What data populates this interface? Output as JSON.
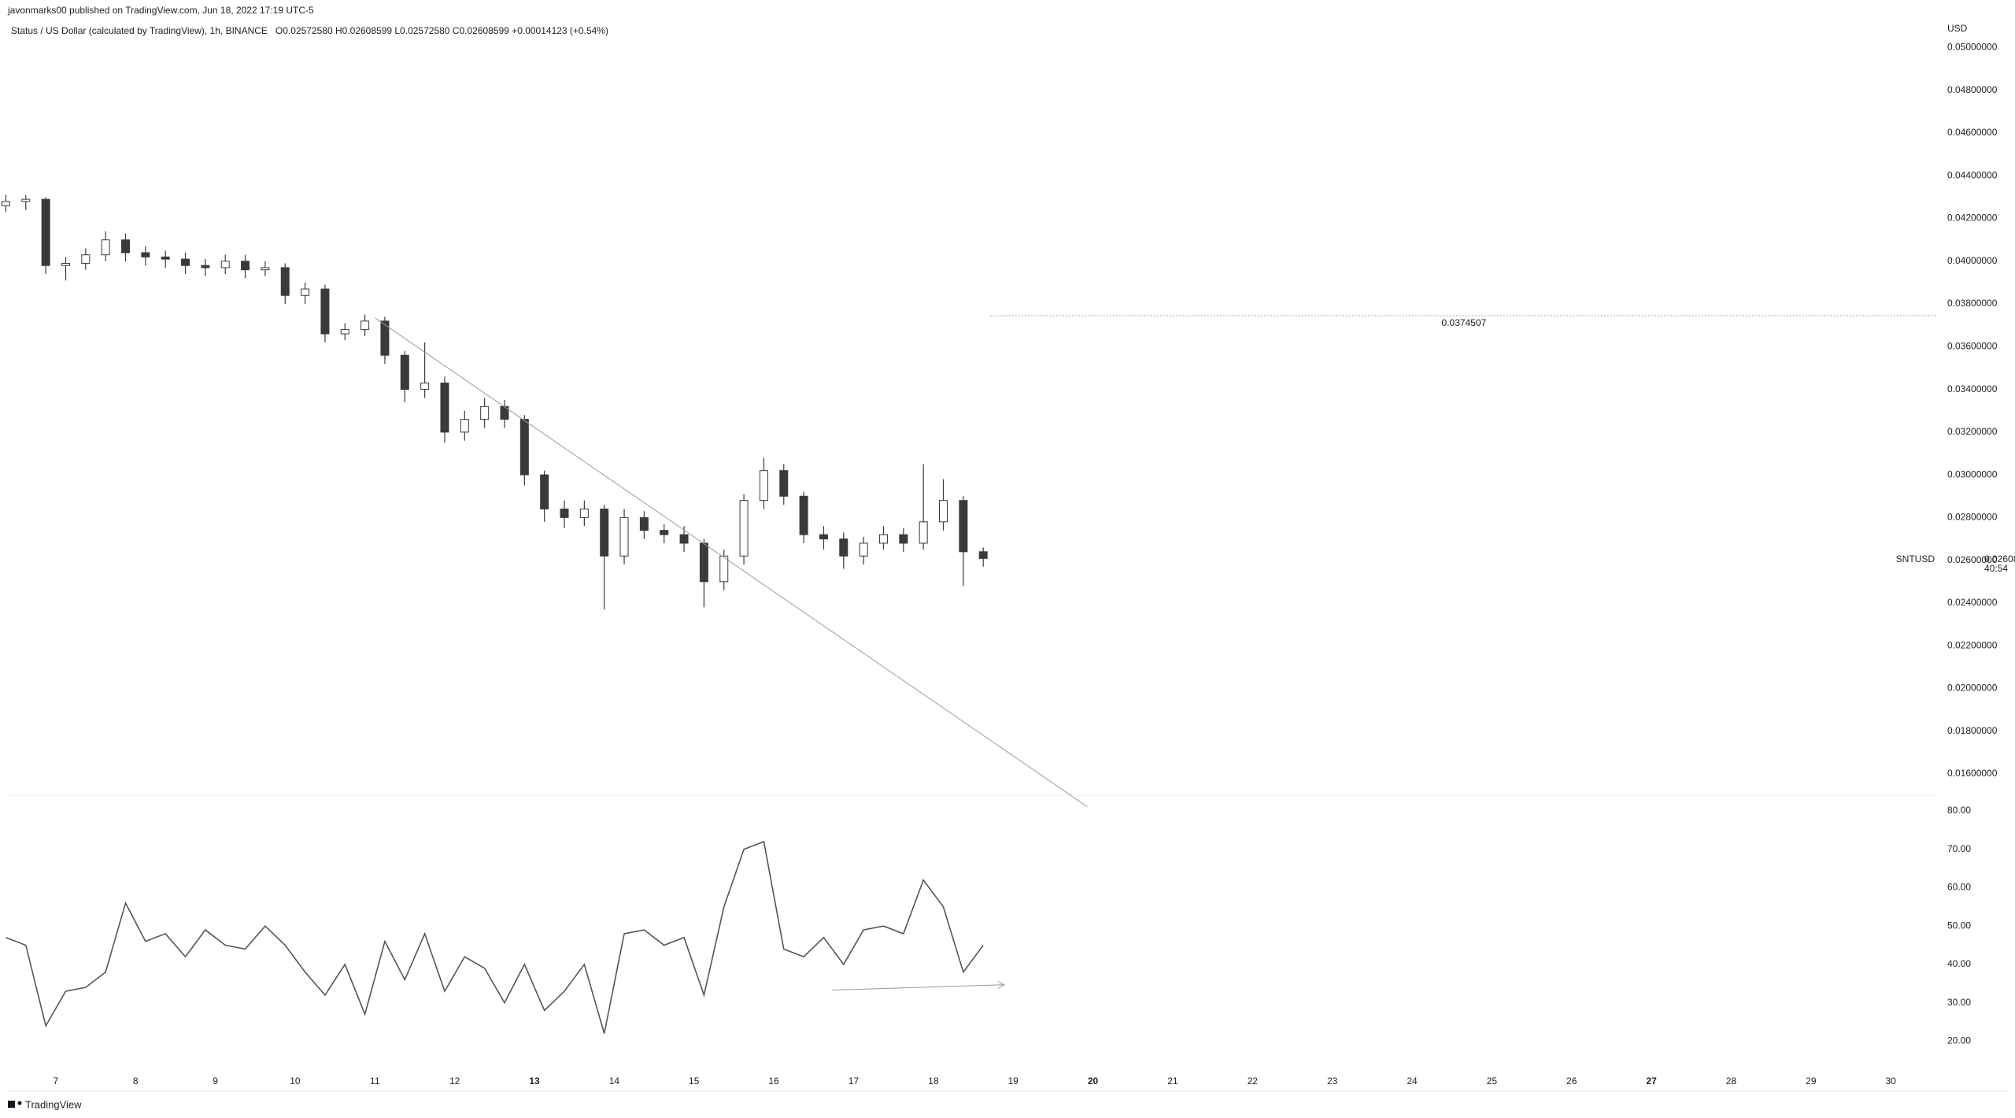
{
  "header": {
    "published": "javonmarks00 published on TradingView.com, Jun 18, 2022 17:19 UTC-5",
    "symbol": "Status / US Dollar (calculated by TradingView), 1h, BINANCE",
    "ohlc": "O0.02572580  H0.02608599  L0.02572580  C0.02608599  +0.00014123 (+0.54%)",
    "currency": "USD",
    "ticker": "SNTUSD",
    "countdown": "40:54",
    "footer": "TradingView"
  },
  "chart_data": [
    {
      "type": "candlestick",
      "up_color": "#ffffff",
      "down_color": "#3a3a3a",
      "edge_color": "#3a3a3a",
      "x": [
        6.375,
        6.625,
        6.875,
        7.125,
        7.375,
        7.625,
        7.875,
        8.125,
        8.375,
        8.625,
        8.875,
        9.125,
        9.375,
        9.625,
        9.875,
        10.125,
        10.375,
        10.625,
        10.875,
        11.125,
        11.375,
        11.625,
        11.875,
        12.125,
        12.375,
        12.625,
        12.875,
        13.125,
        13.375,
        13.625,
        13.875,
        14.125,
        14.375,
        14.625,
        14.875,
        15.125,
        15.375,
        15.625,
        15.875,
        16.125,
        16.375,
        16.625,
        16.875,
        17.125,
        17.375,
        17.625,
        17.875,
        18.125,
        18.375,
        18.625
      ],
      "open": [
        0.0426,
        0.0428,
        0.0429,
        0.0398,
        0.0399,
        0.0403,
        0.041,
        0.0404,
        0.0402,
        0.0401,
        0.0398,
        0.0397,
        0.04,
        0.0396,
        0.0397,
        0.0384,
        0.0387,
        0.0366,
        0.0368,
        0.0372,
        0.0356,
        0.034,
        0.0343,
        0.032,
        0.0326,
        0.0332,
        0.0326,
        0.03,
        0.0284,
        0.028,
        0.0284,
        0.0262,
        0.028,
        0.0274,
        0.0272,
        0.0268,
        0.025,
        0.0262,
        0.0288,
        0.0302,
        0.029,
        0.0272,
        0.027,
        0.0262,
        0.0268,
        0.0272,
        0.0268,
        0.0278,
        0.0288,
        0.0264
      ],
      "high": [
        0.0431,
        0.0431,
        0.043,
        0.0402,
        0.0406,
        0.0414,
        0.0413,
        0.0407,
        0.0405,
        0.0404,
        0.0401,
        0.0403,
        0.0403,
        0.04,
        0.0399,
        0.039,
        0.0389,
        0.0371,
        0.0375,
        0.0374,
        0.0358,
        0.0362,
        0.0346,
        0.033,
        0.0336,
        0.0335,
        0.0328,
        0.0302,
        0.0288,
        0.0288,
        0.0286,
        0.0284,
        0.0283,
        0.0277,
        0.0276,
        0.027,
        0.0265,
        0.0291,
        0.0308,
        0.0305,
        0.0292,
        0.0276,
        0.0273,
        0.0271,
        0.0276,
        0.0275,
        0.0305,
        0.0298,
        0.029,
        0.0266
      ],
      "low": [
        0.0423,
        0.0424,
        0.0394,
        0.0391,
        0.0396,
        0.04,
        0.04,
        0.0398,
        0.0397,
        0.0394,
        0.0393,
        0.0394,
        0.0392,
        0.0393,
        0.038,
        0.038,
        0.0362,
        0.0363,
        0.0365,
        0.0352,
        0.0334,
        0.0336,
        0.0315,
        0.0316,
        0.0322,
        0.0322,
        0.0295,
        0.0278,
        0.0275,
        0.0276,
        0.0237,
        0.0258,
        0.027,
        0.0268,
        0.0264,
        0.0238,
        0.0246,
        0.0258,
        0.0284,
        0.0286,
        0.0268,
        0.0265,
        0.0256,
        0.0258,
        0.0265,
        0.0264,
        0.0265,
        0.0274,
        0.0248,
        0.0257
      ],
      "close": [
        0.0428,
        0.0429,
        0.0398,
        0.0399,
        0.0403,
        0.041,
        0.0404,
        0.0402,
        0.0401,
        0.0398,
        0.0397,
        0.04,
        0.0396,
        0.0397,
        0.0384,
        0.0387,
        0.0366,
        0.0368,
        0.0372,
        0.0356,
        0.034,
        0.0343,
        0.032,
        0.0326,
        0.0332,
        0.0326,
        0.03,
        0.0284,
        0.028,
        0.0284,
        0.0262,
        0.028,
        0.0274,
        0.0272,
        0.0268,
        0.025,
        0.0262,
        0.0288,
        0.0302,
        0.029,
        0.0272,
        0.027,
        0.0262,
        0.0268,
        0.0272,
        0.0268,
        0.0278,
        0.0288,
        0.0264,
        0.02608599
      ],
      "xlim": [
        6.4,
        30.59
      ],
      "ylim": [
        0.01504,
        0.05223
      ],
      "xticks": [
        7,
        8,
        9,
        10,
        11,
        12,
        13,
        14,
        15,
        16,
        17,
        18,
        19,
        20,
        21,
        22,
        23,
        24,
        25,
        26,
        27,
        28,
        29,
        30
      ],
      "bold_xticks": [
        13,
        20,
        27
      ],
      "yticks": [
        {
          "value": 0.016,
          "label": "0.01600000"
        },
        {
          "value": 0.018,
          "label": "0.01800000"
        },
        {
          "value": 0.02,
          "label": "0.02000000"
        },
        {
          "value": 0.022,
          "label": "0.02200000"
        },
        {
          "value": 0.024,
          "label": "0.02400000"
        },
        {
          "value": 0.026,
          "label": "0.02600000"
        },
        {
          "value": 0.028,
          "label": "0.02800000"
        },
        {
          "value": 0.03,
          "label": "0.03000000"
        },
        {
          "value": 0.032,
          "label": "0.03200000"
        },
        {
          "value": 0.034,
          "label": "0.03400000"
        },
        {
          "value": 0.036,
          "label": "0.03600000"
        },
        {
          "value": 0.038,
          "label": "0.03800000"
        },
        {
          "value": 0.04,
          "label": "0.04000000"
        },
        {
          "value": 0.042,
          "label": "0.04200000"
        },
        {
          "value": 0.044,
          "label": "0.04400000"
        },
        {
          "value": 0.046,
          "label": "0.04600000"
        },
        {
          "value": 0.048,
          "label": "0.04800000"
        },
        {
          "value": 0.05,
          "label": "0.05000000"
        }
      ],
      "trendline": {
        "x": [
          11.0,
          19.93
        ],
        "y": [
          0.03735,
          0.01446
        ]
      },
      "hline": 0.0374507,
      "hline_start": 18.71
    },
    {
      "type": "line",
      "color": "#555555",
      "x": [
        6.375,
        6.625,
        6.875,
        7.125,
        7.375,
        7.625,
        7.875,
        8.125,
        8.375,
        8.625,
        8.875,
        9.125,
        9.375,
        9.625,
        9.875,
        10.125,
        10.375,
        10.625,
        10.875,
        11.125,
        11.375,
        11.625,
        11.875,
        12.125,
        12.375,
        12.625,
        12.875,
        13.125,
        13.375,
        13.625,
        13.875,
        14.125,
        14.375,
        14.625,
        14.875,
        15.125,
        15.375,
        15.625,
        15.875,
        16.125,
        16.375,
        16.625,
        16.875,
        17.125,
        17.375,
        17.625,
        17.875,
        18.125,
        18.375,
        18.625
      ],
      "values": [
        47,
        45,
        24,
        33,
        34,
        38,
        56,
        46,
        48,
        42,
        49,
        45,
        44,
        50,
        45,
        38,
        32,
        40,
        27,
        46,
        36,
        48,
        33,
        42,
        39,
        30,
        40,
        28,
        33,
        40,
        22,
        48,
        49,
        45,
        47,
        32,
        55,
        70,
        72,
        44,
        42,
        47,
        40,
        49,
        50,
        48,
        62,
        55,
        38,
        45
      ],
      "xlim": [
        6.4,
        30.59
      ],
      "ylim": [
        13.3,
        83.7
      ],
      "yticks": [
        {
          "value": 20,
          "label": "20.00"
        },
        {
          "value": 30,
          "label": "30.00"
        },
        {
          "value": 40,
          "label": "40.00"
        },
        {
          "value": 50,
          "label": "50.00"
        },
        {
          "value": 60,
          "label": "60.00"
        },
        {
          "value": 70,
          "label": "70.00"
        },
        {
          "value": 80,
          "label": "80.00"
        }
      ],
      "divergence": {
        "x": [
          16.73,
          18.89
        ],
        "y": [
          33.3,
          34.7
        ]
      }
    }
  ]
}
